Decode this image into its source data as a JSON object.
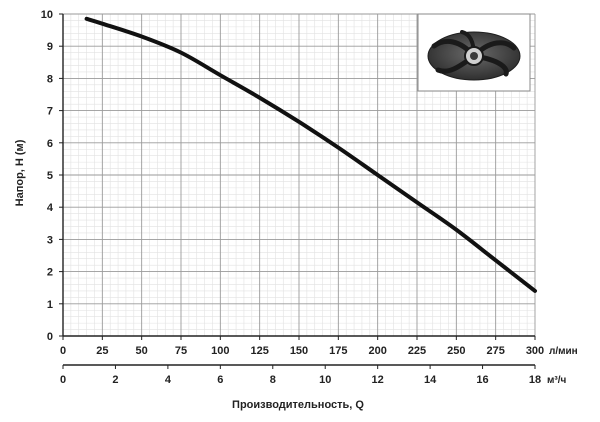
{
  "chart_data": {
    "type": "line",
    "ylabel": "Напор, H (м)",
    "xlabel": "Производительность, Q",
    "x_unit": "л/мин",
    "x2_unit": "м³/ч",
    "xlim": [
      0,
      300
    ],
    "ylim": [
      0,
      10
    ],
    "x2lim": [
      0,
      18
    ],
    "x_ticks": [
      "0",
      "25",
      "50",
      "75",
      "100",
      "125",
      "150",
      "175",
      "200",
      "225",
      "250",
      "275",
      "300"
    ],
    "x2_ticks": [
      "0",
      "2",
      "4",
      "6",
      "8",
      "10",
      "12",
      "14",
      "16",
      "18"
    ],
    "y_ticks": [
      "0",
      "1",
      "2",
      "3",
      "4",
      "5",
      "6",
      "7",
      "8",
      "9",
      "10"
    ],
    "grid": true,
    "series": [
      {
        "x": [
          15,
          25,
          50,
          75,
          100,
          125,
          150,
          175,
          200,
          225,
          250,
          275,
          300
        ],
        "y": [
          9.85,
          9.7,
          9.3,
          8.8,
          8.1,
          7.4,
          6.65,
          5.85,
          5.0,
          4.15,
          3.3,
          2.35,
          1.4
        ]
      }
    ]
  },
  "inset": {
    "icon": "impeller-icon"
  }
}
